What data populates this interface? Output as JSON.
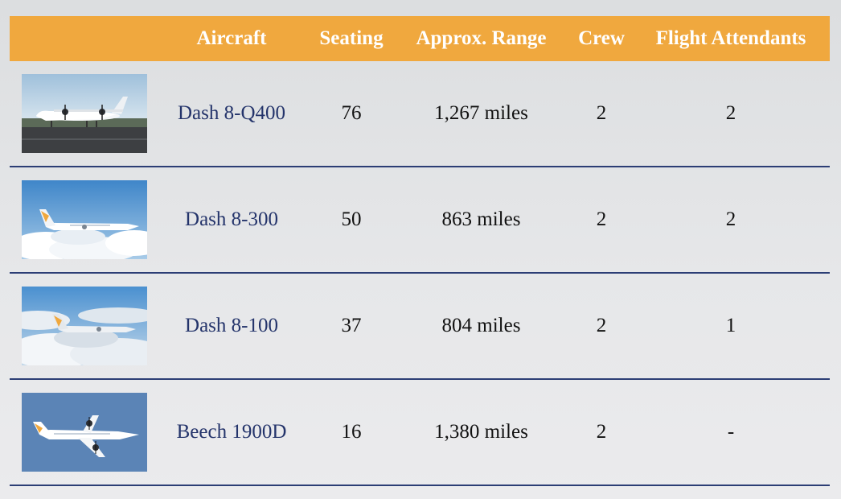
{
  "table": {
    "headers": {
      "aircraft": "Aircraft",
      "seating": "Seating",
      "range": "Approx. Range",
      "crew": "Crew",
      "flight_attendants": "Flight Attendants"
    },
    "rows": [
      {
        "aircraft": "Dash 8-Q400",
        "seating": "76",
        "range": "1,267 miles",
        "crew": "2",
        "flight_attendants": "2",
        "image": "aircraft-on-runway-photo"
      },
      {
        "aircraft": "Dash 8-300",
        "seating": "50",
        "range": "863 miles",
        "crew": "2",
        "flight_attendants": "2",
        "image": "aircraft-above-clouds-photo"
      },
      {
        "aircraft": "Dash 8-100",
        "seating": "37",
        "range": "804 miles",
        "crew": "2",
        "flight_attendants": "1",
        "image": "aircraft-above-clouds-photo"
      },
      {
        "aircraft": "Beech 1900D",
        "seating": "16",
        "range": "1,380 miles",
        "crew": "2",
        "flight_attendants": "-",
        "image": "aircraft-in-blue-sky-photo"
      }
    ]
  },
  "colors": {
    "header_background": "#f0a83e",
    "header_text": "#ffffff",
    "aircraft_name_text": "#24346b",
    "row_divider": "#2c3e75"
  }
}
